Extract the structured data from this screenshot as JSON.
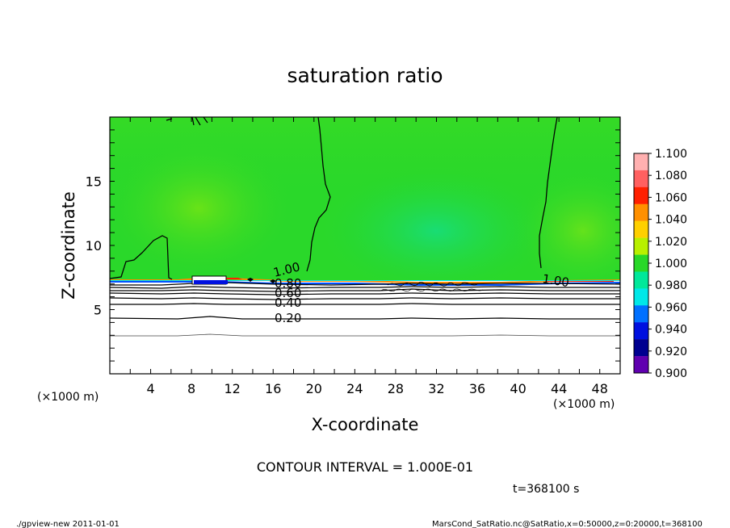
{
  "chart_data": {
    "type": "heatmap",
    "title": "saturation ratio",
    "xlabel": "X-coordinate",
    "ylabel": "Z-coordinate",
    "x_unit_left": "(×1000 m)",
    "x_unit_right": "(×1000 m)",
    "xlim": [
      0,
      50
    ],
    "ylim": [
      0,
      20
    ],
    "x_ticks": [
      4,
      8,
      12,
      16,
      20,
      24,
      28,
      32,
      36,
      40,
      44,
      48
    ],
    "y_ticks": [
      5,
      10,
      15
    ],
    "colorbar": {
      "levels": [
        "1.100",
        "1.080",
        "1.060",
        "1.040",
        "1.020",
        "1.000",
        "0.980",
        "0.960",
        "0.940",
        "0.920",
        "0.900"
      ],
      "colors": [
        "#ffb0b0",
        "#ff6060",
        "#ff2000",
        "#ff9000",
        "#ffd000",
        "#b8f000",
        "#28d828",
        "#00e89a",
        "#00e8e8",
        "#0070ff",
        "#0010e0",
        "#000090",
        "#6000b0"
      ]
    },
    "contour_labels": [
      "1.00",
      "0.80",
      "0.60",
      "0.40",
      "0.20",
      "1.00"
    ],
    "contour_interval_text": "CONTOUR INTERVAL = 1.000E-01",
    "time_text": "t=368100 s",
    "footer_left": "./gpview-new  2011-01-01",
    "footer_right": "MarsCond_SatRatio.nc@SatRatio,x=0:50000,z=0:20000,t=368100"
  }
}
